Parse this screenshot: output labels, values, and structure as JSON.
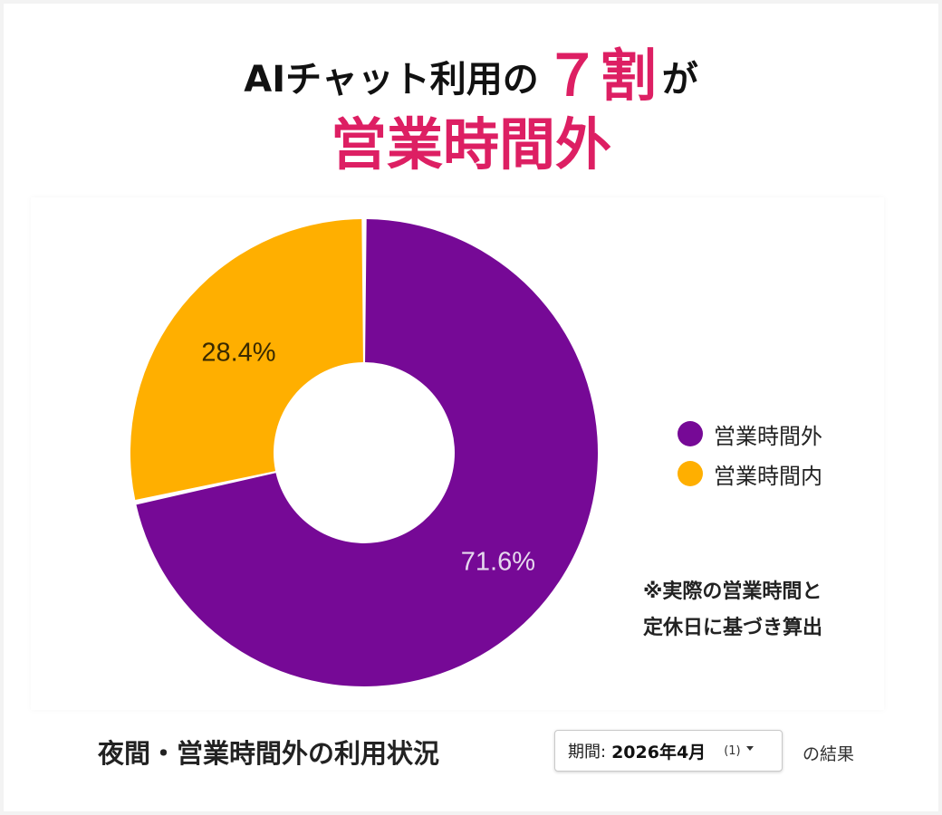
{
  "headline": {
    "line1_prefix": "AIチャット利用の",
    "line1_emphasis": "７割",
    "line1_suffix": "が",
    "line2": "営業時間外"
  },
  "chart_data": {
    "type": "pie",
    "donut": true,
    "slices": [
      {
        "label": "営業時間外",
        "value": 71.6,
        "value_label": "71.6%",
        "color": "#760996"
      },
      {
        "label": "営業時間内",
        "value": 28.4,
        "value_label": "28.4%",
        "color": "#ffaf00"
      }
    ],
    "legend_position": "right"
  },
  "note": {
    "line1": "※実際の営業時間と",
    "line2": "定休日に基づき算出"
  },
  "footer": {
    "title": "夜間・営業時間外の利用状況",
    "period_label": "期間:",
    "period_value": "2026年4月",
    "period_count": "(1)",
    "result_text": "の結果"
  }
}
